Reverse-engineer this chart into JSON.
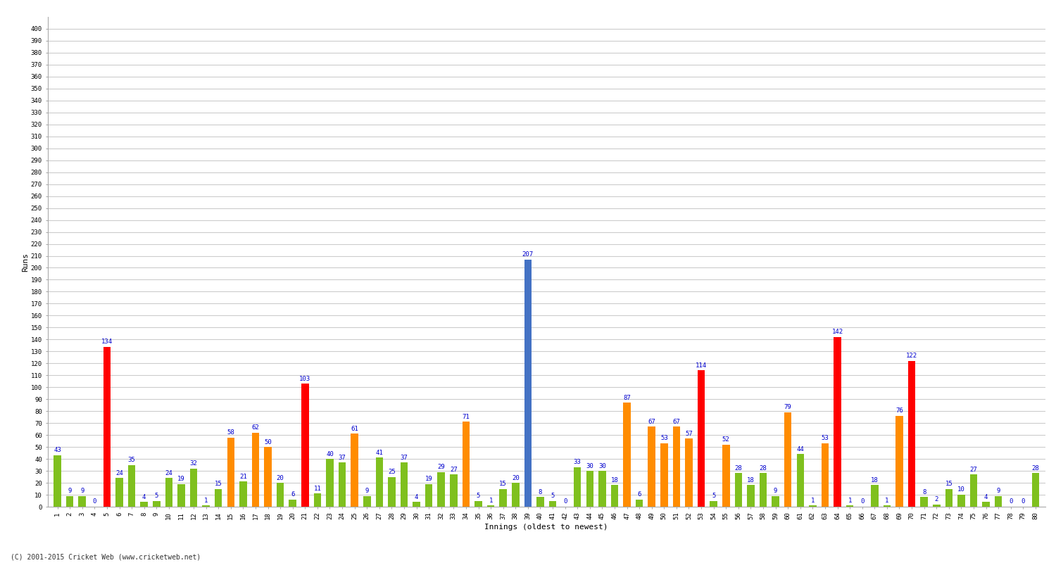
{
  "xlabel": "Innings (oldest to newest)",
  "ylabel": "Runs",
  "ylim": [
    0,
    410
  ],
  "yticks": [
    0,
    10,
    20,
    30,
    40,
    50,
    60,
    70,
    80,
    90,
    100,
    110,
    120,
    130,
    140,
    150,
    160,
    170,
    180,
    190,
    200,
    210,
    220,
    230,
    240,
    250,
    260,
    270,
    280,
    290,
    300,
    310,
    320,
    330,
    340,
    350,
    360,
    370,
    380,
    390,
    400
  ],
  "background_color": "#ffffff",
  "grid_color": "#cccccc",
  "innings": [
    1,
    2,
    3,
    4,
    5,
    6,
    7,
    8,
    9,
    10,
    11,
    12,
    13,
    14,
    15,
    16,
    17,
    18,
    19,
    20,
    21,
    22,
    23,
    24,
    25,
    26,
    27,
    28,
    29,
    30,
    31,
    32,
    33,
    34,
    35,
    36,
    37,
    38,
    39,
    40,
    41,
    42,
    43,
    44,
    45,
    46,
    47,
    48,
    49,
    50,
    51,
    52,
    53,
    54,
    55,
    56,
    57,
    58,
    59,
    60,
    61,
    62,
    63,
    64,
    65,
    66,
    67,
    68,
    69,
    70,
    71,
    72,
    73,
    74,
    75,
    76,
    77,
    78,
    79,
    80
  ],
  "scores": [
    43,
    9,
    9,
    0,
    134,
    24,
    35,
    4,
    5,
    24,
    19,
    32,
    1,
    15,
    58,
    21,
    62,
    50,
    20,
    6,
    103,
    11,
    40,
    37,
    61,
    9,
    41,
    25,
    37,
    4,
    19,
    29,
    27,
    71,
    5,
    1,
    15,
    20,
    207,
    8,
    5,
    0,
    33,
    30,
    30,
    18,
    87,
    6,
    67,
    53,
    67,
    57,
    114,
    5,
    52,
    28,
    18,
    28,
    9,
    79,
    44,
    1,
    53,
    142,
    1,
    0,
    18,
    1,
    76,
    122,
    8,
    2,
    15,
    10,
    27,
    4,
    9,
    0,
    0,
    28
  ],
  "color_thresholds": {
    "blue_above": 200,
    "red_above": 100,
    "orange_above": 50,
    "green_below": 50
  },
  "colors": {
    "blue": "#4472c4",
    "red": "#ff0000",
    "orange": "#ff8c00",
    "green": "#7fc01e"
  },
  "label_color": "#0000cd",
  "label_fontsize": 6.5,
  "tick_fontsize": 6.5,
  "axis_label_fontsize": 8,
  "footer_text": "(C) 2001-2015 Cricket Web (www.cricketweb.net)"
}
